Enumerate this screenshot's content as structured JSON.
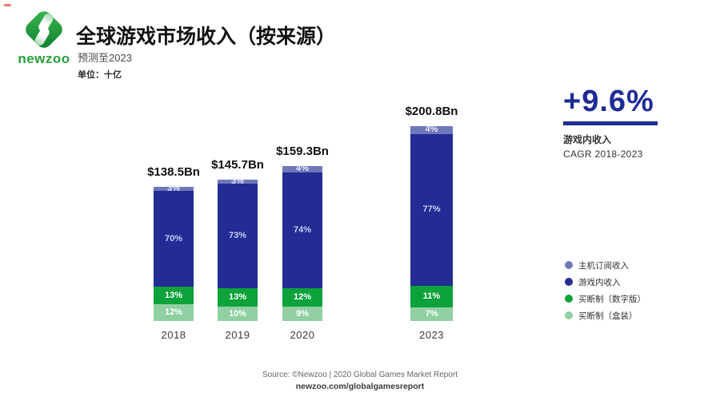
{
  "header": {
    "logo_text": "newzoo",
    "logo_color": "#28a03c",
    "title": "全球游戏市场收入（按来源）",
    "subtitle": "预测至2023",
    "unit_label": "单位：十亿"
  },
  "cagr": {
    "value": "+9.6%",
    "line1": "游戏内收入",
    "line2": "CAGR 2018-2023",
    "accent_color": "#1f2b96"
  },
  "footer": {
    "source": "Source: ©Newzoo | 2020 Global Games Market Report",
    "link": "newzoo.com/globalgamesreport"
  },
  "chart_data": {
    "type": "bar",
    "stacked": true,
    "title": "全球游戏市场收入（按来源）",
    "subtitle": "预测至2023",
    "unit": "十亿",
    "categories": [
      "2018",
      "2019",
      "2020",
      "2023"
    ],
    "totals_labels": [
      "$138.5Bn",
      "$145.7Bn",
      "$159.3Bn",
      "$200.8Bn"
    ],
    "totals_values_bn": [
      138.5,
      145.7,
      159.3,
      200.8
    ],
    "value_suffix": "%",
    "series": [
      {
        "key": "console-subscription",
        "name": "主机订阅收入",
        "color": "#6f77bb",
        "values": [
          3,
          3,
          4,
          4
        ]
      },
      {
        "key": "in-game",
        "name": "游戏内收入",
        "color": "#222c94",
        "values": [
          70,
          73,
          74,
          77
        ]
      },
      {
        "key": "buy-to-play-digital",
        "name": "买断制（数字版）",
        "color": "#0da23a",
        "values": [
          13,
          13,
          12,
          11
        ]
      },
      {
        "key": "buy-to-play-boxed",
        "name": "买断制（盒装）",
        "color": "#90d0a2",
        "values": [
          12,
          10,
          9,
          7
        ]
      }
    ],
    "legend_position": "right",
    "grid": false,
    "cagr_annotation": {
      "value_pct": 9.6,
      "series": "游戏内收入",
      "period": "2018-2023"
    }
  }
}
